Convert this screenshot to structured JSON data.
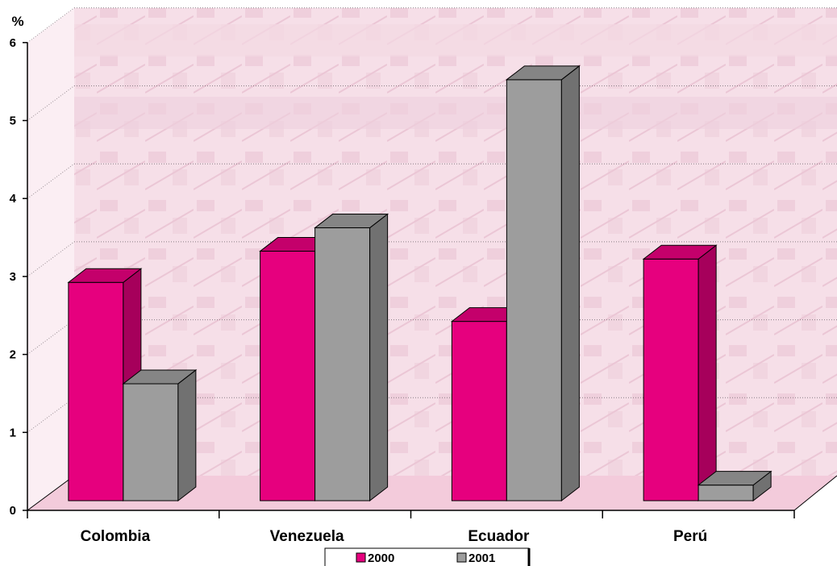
{
  "chart_data": {
    "type": "bar",
    "title": "",
    "xlabel": "",
    "ylabel": "%",
    "ylim": [
      0,
      6
    ],
    "yticks": [
      "0",
      "1",
      "2",
      "3",
      "4",
      "5",
      "6"
    ],
    "categories": [
      "Colombia",
      "Venezuela",
      "Ecuador",
      "Perú"
    ],
    "series": [
      {
        "name": "2000",
        "values": [
          2.8,
          3.2,
          2.3,
          3.1
        ],
        "color": "#E6007E"
      },
      {
        "name": "2001",
        "values": [
          1.5,
          3.5,
          5.4,
          0.2
        ],
        "color": "#9D9D9D"
      }
    ],
    "legend_position": "bottom-center",
    "grid": true,
    "style": "3d-bar",
    "background": "faded pink industrial photo"
  }
}
